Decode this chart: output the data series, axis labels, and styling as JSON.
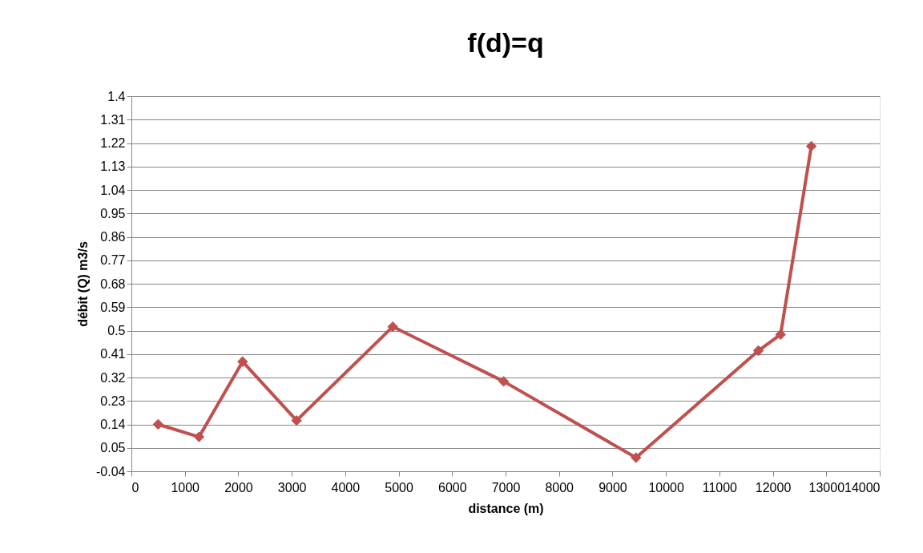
{
  "chart_data": {
    "type": "line",
    "title": "f(d)=q",
    "xlabel": "distance (m)",
    "ylabel": "débit (Q) m3/s",
    "x": [
      500,
      1265,
      2080,
      3090,
      4890,
      6965,
      9440,
      11730,
      12145,
      12720
    ],
    "series": [
      {
        "color": "#c0504d",
        "values": [
          0.14,
          0.092,
          0.381,
          0.155,
          0.515,
          0.305,
          0.012,
          0.423,
          0.485,
          1.208
        ]
      }
    ],
    "xlim": [
      0,
      14000
    ],
    "xticks": [
      0,
      1000,
      2000,
      3000,
      4000,
      5000,
      6000,
      7000,
      8000,
      9000,
      10000,
      11000,
      12000,
      13000,
      14000
    ],
    "ylim": [
      -0.04,
      1.4
    ],
    "yticks": [
      -0.04,
      0.05,
      0.14,
      0.23,
      0.32,
      0.41,
      0.5,
      0.59,
      0.68,
      0.77,
      0.86,
      0.95,
      1.04,
      1.13,
      1.22,
      1.31,
      1.4
    ],
    "grid": "y",
    "marker": "diamond",
    "line_style": "solid"
  }
}
